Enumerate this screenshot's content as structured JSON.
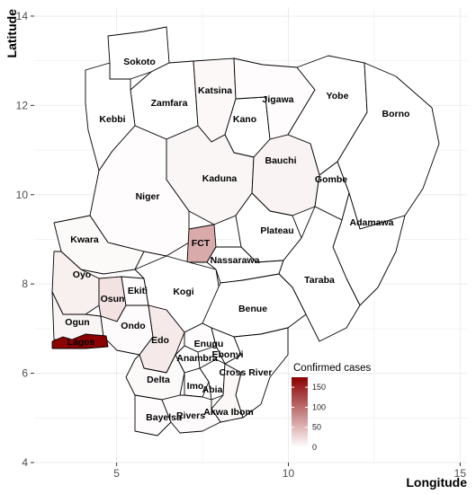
{
  "chart_data": {
    "type": "choropleth",
    "xlabel": "Longitude",
    "ylabel": "Latitude",
    "xlim": [
      2.6,
      15.2
    ],
    "ylim": [
      4.0,
      14.2
    ],
    "x_ticks": [
      5,
      10,
      15
    ],
    "y_ticks": [
      4,
      6,
      8,
      10,
      12,
      14
    ],
    "grid": true,
    "legend": {
      "title": "Confirmed cases",
      "placement": "bottom-right",
      "ticks": [
        0,
        50,
        100,
        150
      ],
      "range": [
        0,
        175
      ],
      "color_low": "#ffffff",
      "color_high": "#8b0000"
    },
    "states": [
      {
        "name": "Sokoto",
        "cases": 0
      },
      {
        "name": "Zamfara",
        "cases": 0
      },
      {
        "name": "Kebbi",
        "cases": 0
      },
      {
        "name": "Katsina",
        "cases": 5
      },
      {
        "name": "Kano",
        "cases": 0
      },
      {
        "name": "Jigawa",
        "cases": 2
      },
      {
        "name": "Yobe",
        "cases": 0
      },
      {
        "name": "Borno",
        "cases": 0
      },
      {
        "name": "Kaduna",
        "cases": 6
      },
      {
        "name": "Bauchi",
        "cases": 8
      },
      {
        "name": "Gombe",
        "cases": 0
      },
      {
        "name": "Niger",
        "cases": 2
      },
      {
        "name": "FCT",
        "cases": 58
      },
      {
        "name": "Plateau",
        "cases": 0
      },
      {
        "name": "Adamawa",
        "cases": 0
      },
      {
        "name": "Kwara",
        "cases": 4
      },
      {
        "name": "Oyo",
        "cases": 11
      },
      {
        "name": "Osun",
        "cases": 20
      },
      {
        "name": "Ekiti",
        "cases": 2
      },
      {
        "name": "Kogi",
        "cases": 0
      },
      {
        "name": "Nassarawa",
        "cases": 0
      },
      {
        "name": "Taraba",
        "cases": 0
      },
      {
        "name": "Ogun",
        "cases": 7
      },
      {
        "name": "Ondo",
        "cases": 3
      },
      {
        "name": "Edo",
        "cases": 15
      },
      {
        "name": "Benue",
        "cases": 0
      },
      {
        "name": "Lagos",
        "cases": 174
      },
      {
        "name": "Enugu",
        "cases": 2
      },
      {
        "name": "Ebonyi",
        "cases": 0
      },
      {
        "name": "Anambra",
        "cases": 1
      },
      {
        "name": "Delta",
        "cases": 4
      },
      {
        "name": "Cross River",
        "cases": 0
      },
      {
        "name": "Imo",
        "cases": 0
      },
      {
        "name": "Abia",
        "cases": 0
      },
      {
        "name": "Akwa Ibom",
        "cases": 5
      },
      {
        "name": "Bayelsa",
        "cases": 2
      },
      {
        "name": "Rivers",
        "cases": 3
      }
    ]
  }
}
